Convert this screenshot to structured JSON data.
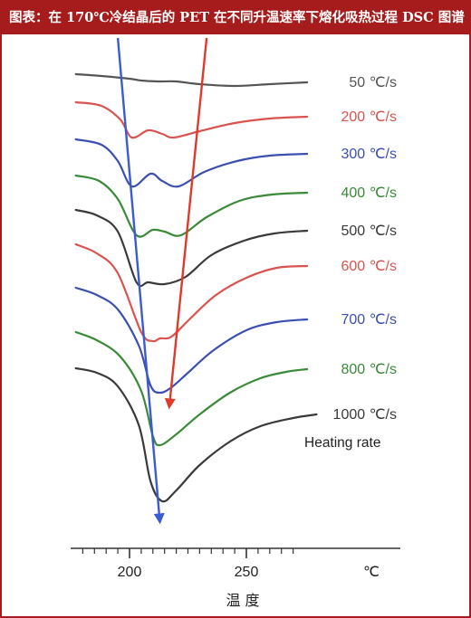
{
  "header": {
    "title": "图表：在 170℃冷结晶后的 PET 在不同升温速率下熔化吸热过程 DSC 图谱"
  },
  "chart_data": {
    "type": "line",
    "title": "图表：在 170℃冷结晶后的 PET 在不同升温速率下熔化吸热过程 DSC 图谱",
    "xlabel": "温 度",
    "x_unit": "℃",
    "xlim": [
      180,
      280
    ],
    "x_ticks": [
      200,
      250
    ],
    "y_axis_shown": false,
    "legend": "right",
    "annotation": "Heating rate",
    "series": [
      {
        "name": "50 ℃/s",
        "color": "#555555",
        "x": [
          177,
          188,
          200,
          205,
          212,
          220,
          230,
          245,
          260,
          276
        ],
        "y": [
          80,
          82,
          85,
          87,
          88,
          88,
          91,
          93,
          91,
          89
        ]
      },
      {
        "name": "200 ℃/s",
        "color": "#d9534f",
        "x": [
          177,
          188,
          196,
          201,
          208,
          214,
          219,
          230,
          245,
          260,
          276
        ],
        "y": [
          111,
          115,
          130,
          150,
          142,
          146,
          150,
          143,
          134,
          129,
          127
        ]
      },
      {
        "name": "300 ℃/s",
        "color": "#3b4fb0",
        "x": [
          177,
          188,
          195,
          201,
          209,
          214,
          221,
          232,
          246,
          260,
          276
        ],
        "y": [
          152,
          158,
          176,
          204,
          190,
          198,
          204,
          188,
          176,
          170,
          168
        ]
      },
      {
        "name": "400 ℃/s",
        "color": "#3a8a3a",
        "x": [
          177,
          187,
          195,
          203,
          210,
          215,
          222,
          233,
          247,
          261,
          276
        ],
        "y": [
          192,
          198,
          218,
          258,
          252,
          254,
          258,
          238,
          220,
          213,
          211
        ]
      },
      {
        "name": "500 ℃/s",
        "color": "#3a3a3a",
        "x": [
          177,
          186,
          195,
          203,
          208,
          215,
          224,
          235,
          249,
          262,
          276
        ],
        "y": [
          230,
          236,
          254,
          310,
          310,
          312,
          304,
          280,
          264,
          256,
          253
        ]
      },
      {
        "name": "600 ℃/s",
        "color": "#d9534f",
        "x": [
          177,
          186,
          195,
          205,
          210,
          213,
          218,
          226,
          237,
          250,
          263,
          276
        ],
        "y": [
          268,
          278,
          300,
          365,
          375,
          372,
          370,
          350,
          324,
          305,
          294,
          292
        ]
      },
      {
        "name": "700 ℃/s",
        "color": "#3b4fb0",
        "x": [
          177,
          186,
          195,
          204,
          209,
          213,
          218,
          225,
          236,
          250,
          263,
          276
        ],
        "y": [
          316,
          324,
          340,
          380,
          424,
          432,
          426,
          410,
          385,
          363,
          354,
          351
        ]
      },
      {
        "name": "800 ℃/s",
        "color": "#3a8a3a",
        "x": [
          177,
          186,
          196,
          205,
          210,
          213,
          220,
          230,
          243,
          256,
          267,
          276
        ],
        "y": [
          365,
          374,
          392,
          430,
          480,
          490,
          478,
          456,
          432,
          416,
          409,
          406
        ]
      },
      {
        "name": "1000 ℃/s",
        "color": "#3a3a3a",
        "x": [
          177,
          186,
          195,
          204,
          209,
          214,
          220,
          230,
          243,
          256,
          270,
          280
        ],
        "y": [
          405,
          410,
          425,
          468,
          530,
          552,
          540,
          512,
          486,
          469,
          460,
          456
        ]
      }
    ],
    "arrows": [
      {
        "name": "blue-arrow",
        "color": "#3b5bd0",
        "from": [
          195,
          40
        ],
        "to": [
          213,
          575
        ]
      },
      {
        "name": "red-arrow",
        "color": "#e03a2a",
        "from": [
          233,
          40
        ],
        "to": [
          217,
          448
        ]
      }
    ]
  }
}
